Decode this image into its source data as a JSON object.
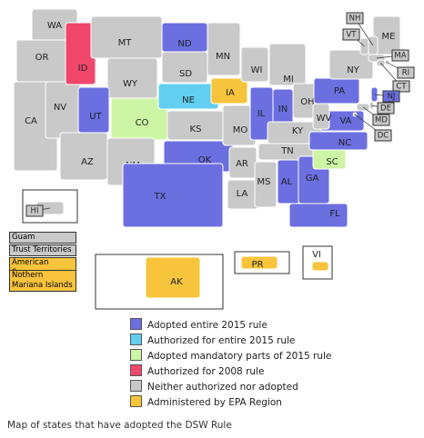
{
  "legend": [
    {
      "label": "Adopted entire 2015 rule",
      "color": "#6b6fe0"
    },
    {
      "label": "Authorized for entire 2015 rule",
      "color": "#62cff0"
    },
    {
      "label": "Adopted mandatory parts of 2015 rule",
      "color": "#cdf5a6"
    },
    {
      "label": "Authorized for 2008 rule",
      "color": "#f0476b"
    },
    {
      "label": "Neither authorized nor adopted",
      "color": "#c9c9c9"
    },
    {
      "label": "Administered by EPA Region",
      "color": "#f7c43c"
    }
  ],
  "states": [
    {
      "label": "WA",
      "status": 4
    },
    {
      "label": "OR",
      "status": 4
    },
    {
      "label": "CA",
      "status": 4
    },
    {
      "label": "NV",
      "status": 4
    },
    {
      "label": "ID",
      "status": 3
    },
    {
      "label": "MT",
      "status": 4
    },
    {
      "label": "WY",
      "status": 4
    },
    {
      "label": "UT",
      "status": 0
    },
    {
      "label": "CO",
      "status": 2
    },
    {
      "label": "AZ",
      "status": 4
    },
    {
      "label": "NM",
      "status": 4
    },
    {
      "label": "ND",
      "status": 0
    },
    {
      "label": "SD",
      "status": 4
    },
    {
      "label": "NE",
      "status": 1
    },
    {
      "label": "KS",
      "status": 4
    },
    {
      "label": "OK",
      "status": 0
    },
    {
      "label": "TX",
      "status": 0
    },
    {
      "label": "MN",
      "status": 4
    },
    {
      "label": "IA",
      "status": 5
    },
    {
      "label": "MO",
      "status": 4
    },
    {
      "label": "AR",
      "status": 4
    },
    {
      "label": "LA",
      "status": 4
    },
    {
      "label": "WI",
      "status": 4
    },
    {
      "label": "IL",
      "status": 0
    },
    {
      "label": "MI",
      "status": 4
    },
    {
      "label": "IN",
      "status": 0
    },
    {
      "label": "OH",
      "status": 4
    },
    {
      "label": "KY",
      "status": 4
    },
    {
      "label": "TN",
      "status": 4
    },
    {
      "label": "MS",
      "status": 4
    },
    {
      "label": "AL",
      "status": 0
    },
    {
      "label": "GA",
      "status": 0
    },
    {
      "label": "FL",
      "status": 0
    },
    {
      "label": "SC",
      "status": 2
    },
    {
      "label": "NC",
      "status": 0
    },
    {
      "label": "VA",
      "status": 0
    },
    {
      "label": "WV",
      "status": 4
    },
    {
      "label": "PA",
      "status": 0
    },
    {
      "label": "NY",
      "status": 4
    },
    {
      "label": "ME",
      "status": 4
    },
    {
      "label": "NH",
      "status": 4
    },
    {
      "label": "VT",
      "status": 4
    },
    {
      "label": "MA",
      "status": 4
    },
    {
      "label": "RI",
      "status": 4
    },
    {
      "label": "CT",
      "status": 4
    },
    {
      "label": "NJ",
      "status": 0
    },
    {
      "label": "DE",
      "status": 4
    },
    {
      "label": "MD",
      "status": 4
    },
    {
      "label": "DC",
      "status": 4
    },
    {
      "label": "HI",
      "status": 4
    },
    {
      "label": "AK",
      "status": 5
    },
    {
      "label": "PR",
      "status": 5
    },
    {
      "label": "VI",
      "status": 5
    }
  ],
  "territories": [
    {
      "label": "Guam",
      "status": 4
    },
    {
      "label": "Trust Territories",
      "status": 4
    },
    {
      "label": "American Samoa",
      "status": 5
    },
    {
      "label": "Nothern Mariana Islands",
      "status": 5
    }
  ],
  "caption": "Map of states that have adopted the DSW Rule"
}
